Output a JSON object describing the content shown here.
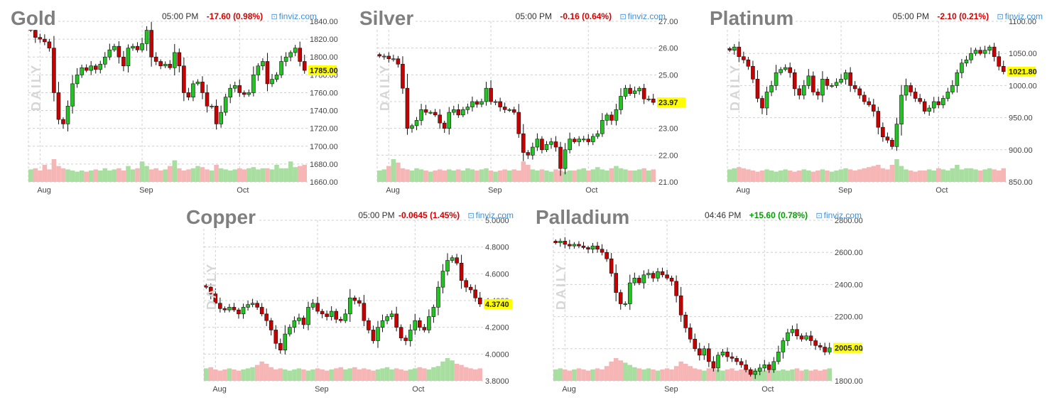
{
  "chart_data": [
    {
      "type": "candlestick",
      "title": "Gold",
      "timestamp": "05:00 PM",
      "change": "-17.60 (0.98%)",
      "change_dir": "neg",
      "source": "finviz.com",
      "side_label": "DAILY",
      "last_price_label": "1785.00",
      "last_price": 1785,
      "ylim": [
        1660,
        1840
      ],
      "yticks": [
        "1840.00",
        "1820.00",
        "1800.00",
        "1780.00",
        "1760.00",
        "1740.00",
        "1720.00",
        "1700.00",
        "1680.00",
        "1660.00"
      ],
      "x_labels": [
        {
          "label": "Aug",
          "index": 2
        },
        {
          "label": "Sep",
          "index": 24
        },
        {
          "label": "Oct",
          "index": 45
        }
      ],
      "closes": [
        1830,
        1822,
        1820,
        1817,
        1810,
        1760,
        1730,
        1725,
        1745,
        1770,
        1780,
        1788,
        1785,
        1790,
        1786,
        1792,
        1800,
        1808,
        1812,
        1800,
        1790,
        1810,
        1812,
        1808,
        1815,
        1830,
        1800,
        1795,
        1790,
        1792,
        1788,
        1805,
        1790,
        1760,
        1755,
        1770,
        1772,
        1760,
        1745,
        1745,
        1725,
        1738,
        1755,
        1765,
        1768,
        1760,
        1758,
        1760,
        1780,
        1790,
        1795,
        1770,
        1775,
        1780,
        1795,
        1800,
        1805,
        1810,
        1795,
        1785
      ],
      "volume": [
        0.55,
        0.6,
        0.5,
        0.75,
        0.55,
        1.0,
        0.7,
        0.6,
        0.55,
        0.5,
        0.45,
        0.5,
        0.45,
        0.5,
        0.55,
        0.5,
        0.6,
        0.5,
        0.55,
        0.6,
        0.5,
        0.7,
        0.55,
        0.6,
        0.9,
        0.7,
        0.55,
        0.6,
        0.5,
        0.55,
        0.7,
        0.95,
        0.6,
        0.5,
        0.55,
        0.6,
        0.7,
        0.65,
        0.55,
        0.5,
        0.75,
        0.6,
        0.55,
        0.5,
        0.55,
        0.6,
        0.55,
        0.6,
        0.65,
        0.55,
        0.6,
        0.6,
        0.55,
        0.75,
        0.6,
        0.6,
        0.9,
        0.65,
        0.7,
        0.75
      ],
      "up_color": "#22c322",
      "down_color": "#c80000"
    },
    {
      "type": "candlestick",
      "title": "Silver",
      "timestamp": "05:00 PM",
      "change": "-0.16 (0.64%)",
      "change_dir": "neg",
      "source": "finviz.com",
      "side_label": "DAILY",
      "last_price_label": "23.97",
      "last_price": 23.97,
      "ylim": [
        21,
        27
      ],
      "yticks": [
        "27.00",
        "26.00",
        "25.00",
        "24.00",
        "23.00",
        "22.00",
        "21.00"
      ],
      "x_labels": [
        {
          "label": "Aug",
          "index": 2
        },
        {
          "label": "Sep",
          "index": 24
        },
        {
          "label": "Oct",
          "index": 45
        }
      ],
      "closes": [
        25.7,
        25.7,
        25.6,
        25.6,
        25.4,
        24.5,
        23.0,
        23.1,
        23.3,
        23.7,
        23.6,
        23.6,
        23.5,
        23.2,
        23.0,
        23.6,
        23.7,
        23.5,
        23.7,
        23.8,
        24.0,
        23.9,
        24.0,
        24.5,
        24.0,
        24.0,
        23.8,
        23.7,
        23.7,
        23.6,
        22.8,
        22.1,
        22.0,
        22.3,
        22.6,
        22.2,
        22.4,
        22.5,
        22.3,
        21.5,
        22.2,
        22.6,
        22.5,
        22.6,
        22.6,
        22.5,
        22.7,
        22.8,
        23.3,
        23.5,
        23.3,
        23.7,
        24.2,
        24.5,
        24.3,
        24.4,
        24.5,
        24.1,
        24.1,
        23.97
      ],
      "volume": [
        0.5,
        0.55,
        0.7,
        1.0,
        0.85,
        0.6,
        0.55,
        0.5,
        0.6,
        0.55,
        0.5,
        0.45,
        0.5,
        0.55,
        0.5,
        0.55,
        0.5,
        0.55,
        0.5,
        0.6,
        0.55,
        0.5,
        0.55,
        0.6,
        0.5,
        0.45,
        0.5,
        0.55,
        0.5,
        0.55,
        0.5,
        0.9,
        0.75,
        0.55,
        0.5,
        0.55,
        0.5,
        0.45,
        0.55,
        0.5,
        0.45,
        0.5,
        0.5,
        0.55,
        0.6,
        0.5,
        0.55,
        0.65,
        0.55,
        0.5,
        0.6,
        0.7,
        0.6,
        0.55,
        0.5,
        0.5,
        0.55,
        0.6,
        0.5,
        0.55
      ],
      "up_color": "#22c322",
      "down_color": "#c80000"
    },
    {
      "type": "candlestick",
      "title": "Platinum",
      "timestamp": "05:00 PM",
      "change": "-2.10 (0.21%)",
      "change_dir": "neg",
      "source": "finviz.com",
      "side_label": "DAILY",
      "last_price_label": "1021.80",
      "last_price": 1021.8,
      "ylim": [
        850,
        1100
      ],
      "yticks": [
        "1100.00",
        "1050.00",
        "1000.00",
        "950.00",
        "900.00",
        "850.00"
      ],
      "x_labels": [
        {
          "label": "Aug",
          "index": 2
        },
        {
          "label": "Sep",
          "index": 24
        },
        {
          "label": "Oct",
          "index": 45
        }
      ],
      "closes": [
        1055,
        1060,
        1045,
        1040,
        1030,
        1010,
        980,
        965,
        990,
        1000,
        1020,
        1025,
        1028,
        1020,
        995,
        985,
        1000,
        1015,
        990,
        985,
        1010,
        1000,
        1000,
        1005,
        1010,
        1020,
        1000,
        995,
        985,
        975,
        970,
        960,
        935,
        920,
        915,
        905,
        940,
        985,
        1000,
        990,
        980,
        975,
        960,
        965,
        975,
        970,
        980,
        990,
        1000,
        1020,
        1035,
        1040,
        1050,
        1055,
        1050,
        1055,
        1060,
        1045,
        1030,
        1021.8
      ],
      "volume": [
        0.55,
        0.6,
        0.65,
        0.6,
        0.55,
        0.5,
        0.45,
        0.5,
        0.55,
        0.5,
        0.45,
        0.5,
        0.55,
        0.5,
        0.45,
        0.5,
        0.55,
        0.5,
        0.45,
        0.5,
        0.55,
        0.5,
        0.45,
        0.5,
        0.55,
        0.6,
        0.55,
        0.5,
        0.55,
        0.6,
        0.65,
        0.7,
        0.75,
        0.6,
        0.55,
        0.75,
        1.0,
        0.7,
        0.55,
        0.5,
        0.45,
        0.5,
        0.5,
        0.55,
        0.5,
        0.6,
        0.55,
        0.5,
        0.6,
        0.75,
        0.55,
        0.6,
        0.6,
        0.55,
        0.5,
        0.55,
        0.6,
        0.55,
        0.5,
        0.6
      ],
      "up_color": "#22c322",
      "down_color": "#c80000"
    },
    {
      "type": "candlestick",
      "title": "Copper",
      "timestamp": "05:00 PM",
      "change": "-0.0645 (1.45%)",
      "change_dir": "neg",
      "source": "finviz.com",
      "side_label": "DAILY",
      "last_price_label": "4.3740",
      "last_price": 4.374,
      "ylim": [
        3.8,
        5.0
      ],
      "yticks": [
        "5.0000",
        "4.8000",
        "4.6000",
        "4.4000",
        "4.2000",
        "4.0000",
        "3.8000"
      ],
      "x_labels": [
        {
          "label": "Aug",
          "index": 2
        },
        {
          "label": "Sep",
          "index": 24
        },
        {
          "label": "Oct",
          "index": 45
        }
      ],
      "closes": [
        4.5,
        4.45,
        4.38,
        4.34,
        4.33,
        4.35,
        4.33,
        4.3,
        4.35,
        4.37,
        4.38,
        4.35,
        4.3,
        4.25,
        4.18,
        4.08,
        4.03,
        4.15,
        4.2,
        4.25,
        4.27,
        4.22,
        4.35,
        4.38,
        4.32,
        4.3,
        4.28,
        4.32,
        4.26,
        4.25,
        4.3,
        4.42,
        4.4,
        4.38,
        4.25,
        4.18,
        4.1,
        4.2,
        4.25,
        4.28,
        4.3,
        4.2,
        4.12,
        4.1,
        4.18,
        4.25,
        4.2,
        4.18,
        4.28,
        4.35,
        4.5,
        4.62,
        4.7,
        4.72,
        4.68,
        4.55,
        4.5,
        4.48,
        4.42,
        4.374
      ],
      "volume": [
        0.55,
        0.6,
        0.5,
        0.45,
        0.5,
        0.55,
        0.5,
        0.45,
        0.5,
        0.55,
        0.6,
        0.7,
        0.85,
        0.75,
        0.6,
        0.5,
        0.55,
        0.5,
        0.45,
        0.5,
        0.55,
        0.5,
        0.45,
        0.5,
        0.55,
        0.5,
        0.45,
        0.5,
        0.55,
        0.6,
        0.5,
        0.55,
        0.6,
        0.5,
        0.55,
        0.5,
        0.45,
        0.5,
        0.55,
        0.6,
        0.5,
        0.55,
        0.5,
        0.45,
        0.5,
        0.55,
        0.6,
        0.55,
        0.5,
        0.6,
        0.65,
        0.85,
        1.0,
        0.9,
        0.75,
        0.7,
        0.6,
        0.55,
        0.5,
        0.55
      ],
      "up_color": "#22c322",
      "down_color": "#c80000"
    },
    {
      "type": "candlestick",
      "title": "Palladium",
      "timestamp": "04:46 PM",
      "change": "+15.60 (0.78%)",
      "change_dir": "pos",
      "source": "finviz.com",
      "side_label": "DAILY",
      "last_price_label": "2005.00",
      "last_price": 2005,
      "ylim": [
        1800,
        2800
      ],
      "yticks": [
        "2800.00",
        "2600.00",
        "2400.00",
        "2200.00",
        "2000.00",
        "1800.00"
      ],
      "x_labels": [
        {
          "label": "Aug",
          "index": 2
        },
        {
          "label": "Sep",
          "index": 24
        },
        {
          "label": "Oct",
          "index": 45
        }
      ],
      "closes": [
        2660,
        2670,
        2650,
        2640,
        2650,
        2640,
        2630,
        2620,
        2640,
        2620,
        2600,
        2560,
        2470,
        2350,
        2280,
        2280,
        2410,
        2440,
        2410,
        2460,
        2470,
        2440,
        2480,
        2460,
        2440,
        2420,
        2330,
        2210,
        2130,
        2060,
        2000,
        1960,
        2000,
        1920,
        1880,
        1960,
        1980,
        1950,
        1940,
        1920,
        1900,
        1870,
        1840,
        1860,
        1880,
        1900,
        1870,
        1920,
        1980,
        2050,
        2100,
        2120,
        2080,
        2060,
        2080,
        2050,
        2020,
        2010,
        1980,
        2005
      ],
      "volume": [
        0.5,
        0.55,
        0.5,
        0.45,
        0.5,
        0.55,
        0.5,
        0.45,
        0.5,
        0.55,
        0.5,
        0.65,
        0.85,
        1.0,
        0.9,
        0.8,
        0.7,
        0.6,
        0.55,
        0.5,
        0.55,
        0.5,
        0.45,
        0.5,
        0.55,
        0.5,
        0.65,
        0.85,
        0.75,
        0.65,
        0.55,
        0.5,
        0.45,
        0.55,
        0.6,
        0.5,
        0.45,
        0.5,
        0.55,
        0.45,
        0.5,
        0.55,
        0.45,
        0.5,
        0.55,
        0.45,
        0.5,
        0.55,
        0.45,
        0.5,
        0.45,
        0.5,
        0.55,
        0.45,
        0.5,
        0.45,
        0.5,
        0.45,
        0.5,
        0.55
      ],
      "up_color": "#22c322",
      "down_color": "#c80000"
    }
  ]
}
